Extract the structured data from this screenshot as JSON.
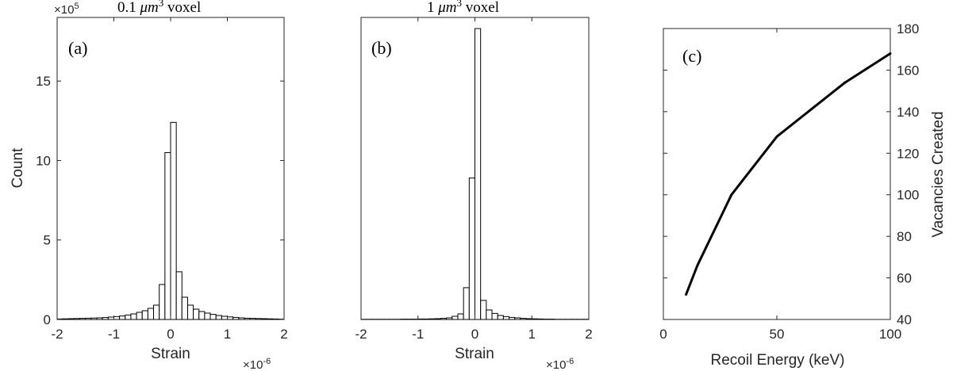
{
  "chart_data": [
    {
      "type": "bar",
      "panel_label": "(a)",
      "title_prefix": "0.1 ",
      "title_unit": "μm",
      "title_sup": "3",
      "title_suffix": " voxel",
      "xlabel": "Strain",
      "ylabel": "Count",
      "x_exponent_base": "×10",
      "x_exponent_sup": "-6",
      "y_exponent_base": "×10",
      "y_exponent_sup": "5",
      "xlim": [
        -2,
        2
      ],
      "ylim": [
        0,
        19
      ],
      "xticks": [
        -2,
        -1,
        0,
        1,
        2
      ],
      "yticks": [
        0,
        5,
        10,
        15
      ],
      "bin_width": 0.1,
      "bin_centers": [
        -1.95,
        -1.85,
        -1.75,
        -1.65,
        -1.55,
        -1.45,
        -1.35,
        -1.25,
        -1.15,
        -1.05,
        -0.95,
        -0.85,
        -0.75,
        -0.65,
        -0.55,
        -0.45,
        -0.35,
        -0.25,
        -0.15,
        -0.05,
        0.05,
        0.15,
        0.25,
        0.35,
        0.45,
        0.55,
        0.65,
        0.75,
        0.85,
        0.95,
        1.05,
        1.15,
        1.25,
        1.35,
        1.45,
        1.55,
        1.65,
        1.75,
        1.85,
        1.95
      ],
      "values": [
        0.03,
        0.04,
        0.05,
        0.06,
        0.07,
        0.08,
        0.09,
        0.1,
        0.12,
        0.15,
        0.18,
        0.22,
        0.28,
        0.35,
        0.45,
        0.55,
        0.7,
        0.9,
        2.2,
        10.5,
        12.4,
        3.0,
        1.4,
        0.9,
        0.65,
        0.5,
        0.4,
        0.32,
        0.25,
        0.2,
        0.16,
        0.13,
        0.1,
        0.08,
        0.07,
        0.06,
        0.05,
        0.04,
        0.03,
        0.02
      ]
    },
    {
      "type": "bar",
      "panel_label": "(b)",
      "title_prefix": "1 ",
      "title_unit": "μm",
      "title_sup": "3",
      "title_suffix": " voxel",
      "xlabel": "Strain",
      "ylabel": "",
      "x_exponent_base": "×10",
      "x_exponent_sup": "-6",
      "xlim": [
        -2,
        2
      ],
      "ylim": [
        0,
        19
      ],
      "xticks": [
        -2,
        -1,
        0,
        1,
        2
      ],
      "yticks": [],
      "bin_width": 0.1,
      "bin_centers": [
        -1.95,
        -1.85,
        -1.75,
        -1.65,
        -1.55,
        -1.45,
        -1.35,
        -1.25,
        -1.15,
        -1.05,
        -0.95,
        -0.85,
        -0.75,
        -0.65,
        -0.55,
        -0.45,
        -0.35,
        -0.25,
        -0.15,
        -0.05,
        0.05,
        0.15,
        0.25,
        0.35,
        0.45,
        0.55,
        0.65,
        0.75,
        0.85,
        0.95,
        1.05,
        1.15,
        1.25,
        1.35,
        1.45,
        1.55,
        1.65,
        1.75,
        1.85,
        1.95
      ],
      "values": [
        0.01,
        0.01,
        0.01,
        0.01,
        0.01,
        0.01,
        0.01,
        0.02,
        0.02,
        0.02,
        0.03,
        0.03,
        0.04,
        0.05,
        0.07,
        0.1,
        0.2,
        0.35,
        2.0,
        8.9,
        18.3,
        1.2,
        0.6,
        0.38,
        0.25,
        0.18,
        0.13,
        0.1,
        0.07,
        0.05,
        0.04,
        0.03,
        0.02,
        0.02,
        0.01,
        0.01,
        0.01,
        0.01,
        0.01,
        0.01
      ]
    },
    {
      "type": "line",
      "panel_label": "(c)",
      "xlabel": "Recoil Energy (keV)",
      "ylabel": "Vacancies Created",
      "xlim": [
        0,
        100
      ],
      "ylim": [
        40,
        180
      ],
      "xticks": [
        0,
        50,
        100
      ],
      "yticks": [
        40,
        60,
        80,
        100,
        120,
        140,
        160,
        180
      ],
      "y_axis_side": "right",
      "x": [
        10,
        15,
        30,
        50,
        80,
        100
      ],
      "y": [
        52,
        66,
        100,
        128,
        154,
        168
      ]
    }
  ]
}
